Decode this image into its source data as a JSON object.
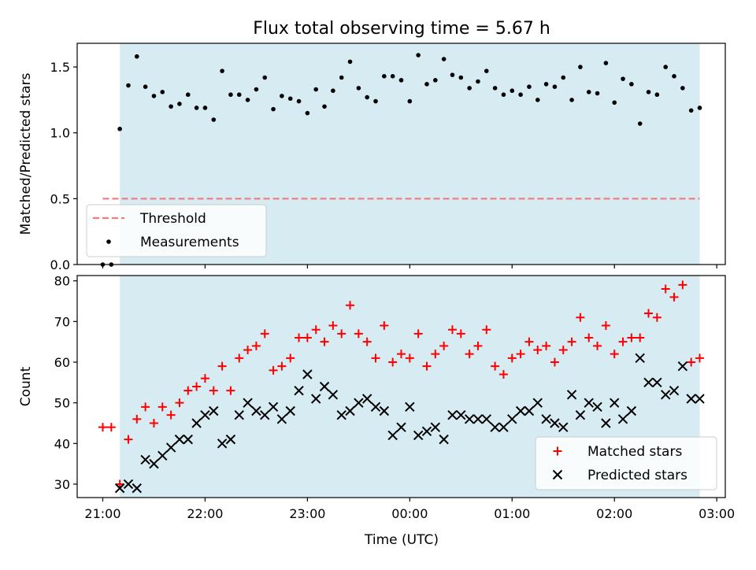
{
  "figure": {
    "title": "Flux total observing time = 5.67 h",
    "xlabel": "Time (UTC)"
  },
  "colors": {
    "observing_window": "#add8e6",
    "threshold": "#f08080",
    "measurements": "#000000",
    "matched": "#ff0000",
    "predicted": "#000000"
  },
  "chart_data": [
    {
      "type": "scatter",
      "ylabel": "Matched/Predicted stars",
      "ylim": [
        0,
        1.68
      ],
      "yticks": [
        0.0,
        0.5,
        1.0,
        1.5
      ],
      "ytick_labels": [
        "0.0",
        "0.5",
        "1.0",
        "1.5"
      ],
      "xlim": [
        "20:45",
        "03:05"
      ],
      "observing_window": [
        "21:10",
        "02:50"
      ],
      "threshold": {
        "name": "Threshold",
        "value": 0.5,
        "x_range": [
          "21:00",
          "02:50"
        ]
      },
      "legend": {
        "placement": "lower-left",
        "entries": [
          "Threshold",
          "Measurements"
        ]
      },
      "series": [
        {
          "name": "Measurements",
          "x": [
            "21:00",
            "21:05",
            "21:10",
            "21:15",
            "21:20",
            "21:25",
            "21:30",
            "21:35",
            "21:40",
            "21:45",
            "21:50",
            "21:55",
            "22:00",
            "22:05",
            "22:10",
            "22:15",
            "22:20",
            "22:25",
            "22:30",
            "22:35",
            "22:40",
            "22:45",
            "22:50",
            "22:55",
            "23:00",
            "23:05",
            "23:10",
            "23:15",
            "23:20",
            "23:25",
            "23:30",
            "23:35",
            "23:40",
            "23:45",
            "23:50",
            "23:55",
            "00:00",
            "00:05",
            "00:10",
            "00:15",
            "00:20",
            "00:25",
            "00:30",
            "00:35",
            "00:40",
            "00:45",
            "00:50",
            "00:55",
            "01:00",
            "01:05",
            "01:10",
            "01:15",
            "01:20",
            "01:25",
            "01:30",
            "01:35",
            "01:40",
            "01:45",
            "01:50",
            "01:55",
            "02:00",
            "02:05",
            "02:10",
            "02:15",
            "02:20",
            "02:25",
            "02:30",
            "02:35",
            "02:40",
            "02:45",
            "02:50"
          ],
          "y": [
            0.0,
            0.0,
            1.03,
            1.36,
            1.58,
            1.35,
            1.28,
            1.31,
            1.2,
            1.22,
            1.29,
            1.19,
            1.19,
            1.1,
            1.47,
            1.29,
            1.29,
            1.25,
            1.33,
            1.42,
            1.18,
            1.28,
            1.26,
            1.24,
            1.15,
            1.33,
            1.2,
            1.32,
            1.42,
            1.54,
            1.34,
            1.27,
            1.24,
            1.43,
            1.43,
            1.4,
            1.24,
            1.59,
            1.37,
            1.4,
            1.56,
            1.44,
            1.42,
            1.34,
            1.39,
            1.47,
            1.34,
            1.29,
            1.32,
            1.29,
            1.35,
            1.25,
            1.37,
            1.35,
            1.42,
            1.25,
            1.5,
            1.31,
            1.3,
            1.53,
            1.23,
            1.41,
            1.37,
            1.07,
            1.31,
            1.29,
            1.5,
            1.43,
            1.34,
            1.17,
            1.19
          ]
        }
      ]
    },
    {
      "type": "scatter",
      "ylabel": "Count",
      "ylim": [
        26.7,
        81.3
      ],
      "yticks": [
        30,
        40,
        50,
        60,
        70,
        80
      ],
      "ytick_labels": [
        "30",
        "40",
        "50",
        "60",
        "70",
        "80"
      ],
      "xlim": [
        "20:45",
        "03:05"
      ],
      "xticks": [
        "21:00",
        "22:00",
        "23:00",
        "00:00",
        "01:00",
        "02:00",
        "03:00"
      ],
      "xtick_labels": [
        "21:00",
        "22:00",
        "23:00",
        "00:00",
        "01:00",
        "02:00",
        "03:00"
      ],
      "observing_window": [
        "21:10",
        "02:50"
      ],
      "legend": {
        "placement": "lower-right",
        "entries": [
          "Matched stars",
          "Predicted stars"
        ]
      },
      "series": [
        {
          "name": "Matched stars",
          "marker": "plus",
          "x": [
            "21:00",
            "21:05",
            "21:10",
            "21:15",
            "21:20",
            "21:25",
            "21:30",
            "21:35",
            "21:40",
            "21:45",
            "21:50",
            "21:55",
            "22:00",
            "22:05",
            "22:10",
            "22:15",
            "22:20",
            "22:25",
            "22:30",
            "22:35",
            "22:40",
            "22:45",
            "22:50",
            "22:55",
            "23:00",
            "23:05",
            "23:10",
            "23:15",
            "23:20",
            "23:25",
            "23:30",
            "23:35",
            "23:40",
            "23:45",
            "23:50",
            "23:55",
            "00:00",
            "00:05",
            "00:10",
            "00:15",
            "00:20",
            "00:25",
            "00:30",
            "00:35",
            "00:40",
            "00:45",
            "00:50",
            "00:55",
            "01:00",
            "01:05",
            "01:10",
            "01:15",
            "01:20",
            "01:25",
            "01:30",
            "01:35",
            "01:40",
            "01:45",
            "01:50",
            "01:55",
            "02:00",
            "02:05",
            "02:10",
            "02:15",
            "02:20",
            "02:25",
            "02:30",
            "02:35",
            "02:40",
            "02:45",
            "02:50"
          ],
          "y": [
            44,
            44,
            30,
            41,
            46,
            49,
            45,
            49,
            47,
            50,
            53,
            54,
            56,
            53,
            59,
            53,
            61,
            63,
            64,
            67,
            58,
            59,
            61,
            66,
            66,
            68,
            65,
            69,
            67,
            74,
            67,
            65,
            61,
            69,
            60,
            62,
            61,
            67,
            59,
            62,
            64,
            68,
            67,
            62,
            64,
            68,
            59,
            57,
            61,
            62,
            65,
            63,
            64,
            60,
            63,
            65,
            71,
            66,
            64,
            69,
            62,
            65,
            66,
            66,
            72,
            71,
            78,
            76,
            79,
            60,
            61
          ]
        },
        {
          "name": "Predicted stars",
          "marker": "x",
          "x": [
            "21:10",
            "21:15",
            "21:20",
            "21:25",
            "21:30",
            "21:35",
            "21:40",
            "21:45",
            "21:50",
            "21:55",
            "22:00",
            "22:05",
            "22:10",
            "22:15",
            "22:20",
            "22:25",
            "22:30",
            "22:35",
            "22:40",
            "22:45",
            "22:50",
            "22:55",
            "23:00",
            "23:05",
            "23:10",
            "23:15",
            "23:20",
            "23:25",
            "23:30",
            "23:35",
            "23:40",
            "23:45",
            "23:50",
            "23:55",
            "00:00",
            "00:05",
            "00:10",
            "00:15",
            "00:20",
            "00:25",
            "00:30",
            "00:35",
            "00:40",
            "00:45",
            "00:50",
            "00:55",
            "01:00",
            "01:05",
            "01:10",
            "01:15",
            "01:20",
            "01:25",
            "01:30",
            "01:35",
            "01:40",
            "01:45",
            "01:50",
            "01:55",
            "02:00",
            "02:05",
            "02:10",
            "02:15",
            "02:20",
            "02:25",
            "02:30",
            "02:35",
            "02:40",
            "02:45",
            "02:50"
          ],
          "y": [
            29,
            30,
            29,
            36,
            35,
            37,
            39,
            41,
            41,
            45,
            47,
            48,
            40,
            41,
            47,
            50,
            48,
            47,
            49,
            46,
            48,
            53,
            57,
            51,
            54,
            52,
            47,
            48,
            50,
            51,
            49,
            48,
            42,
            44,
            49,
            42,
            43,
            44,
            41,
            47,
            47,
            46,
            46,
            46,
            44,
            44,
            46,
            48,
            48,
            50,
            46,
            45,
            44,
            52,
            47,
            50,
            49,
            45,
            50,
            46,
            48,
            61,
            55,
            55,
            52,
            53,
            59,
            51,
            51
          ]
        }
      ]
    }
  ]
}
